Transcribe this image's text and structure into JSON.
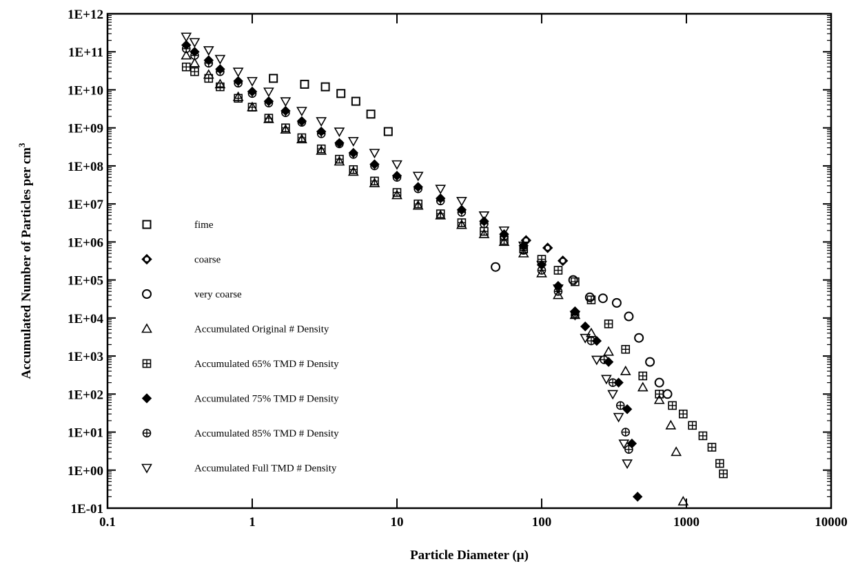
{
  "chart_data": {
    "type": "scatter",
    "title": "",
    "xlabel": "Particle Diameter (μ)",
    "ylabel": "Accumulated Number of Particles per cm",
    "ylabel_sup": "3",
    "x_scale": "log",
    "y_scale": "log",
    "xlim": [
      0.1,
      10000
    ],
    "ylim": [
      0.1,
      1000000000000
    ],
    "x_tick_labels": [
      "0.1",
      "1",
      "10",
      "100",
      "1000",
      "10000"
    ],
    "y_tick_labels": [
      "1E-01",
      "1E+00",
      "1E+01",
      "1E+02",
      "1E+03",
      "1E+04",
      "1E+05",
      "1E+06",
      "1E+07",
      "1E+08",
      "1E+09",
      "1E+10",
      "1E+11",
      "1E+12"
    ],
    "grid": false,
    "legend_position": "left",
    "series": [
      {
        "name": "fime",
        "marker": "square",
        "x": [
          1.4,
          2.3,
          3.2,
          4.1,
          5.2,
          6.6,
          8.7
        ],
        "y": [
          20000000000,
          14000000000,
          12000000000,
          8000000000,
          5000000000,
          2300000000,
          800000000
        ]
      },
      {
        "name": "coarse",
        "marker": "diamond-circle",
        "x": [
          78,
          110,
          140
        ],
        "y": [
          1100000,
          700000,
          320000
        ]
      },
      {
        "name": "very coarse",
        "marker": "circle",
        "x": [
          48,
          165,
          215,
          265,
          330,
          400,
          470,
          560,
          650,
          740
        ],
        "y": [
          220000,
          100000,
          35000,
          33000,
          25000,
          11000,
          3000,
          700,
          200,
          100
        ]
      },
      {
        "name": "Accumulated Original # Density",
        "marker": "triangle-up",
        "x": [
          0.35,
          0.4,
          0.5,
          0.6,
          0.8,
          1,
          1.3,
          1.7,
          2.2,
          3,
          4,
          5,
          7,
          10,
          14,
          20,
          28,
          40,
          55,
          75,
          100,
          130,
          170,
          220,
          290,
          380,
          500,
          650,
          780,
          850,
          950
        ],
        "y": [
          80000000000,
          50000000000,
          25000000000,
          14000000000,
          6500000000,
          3500000000,
          1700000000,
          900000000,
          500000000,
          250000000,
          130000000,
          70000000,
          35000000,
          17000000,
          9000000,
          5000000,
          2800000,
          1600000,
          1000000,
          500000,
          150000,
          40000,
          12000,
          4000,
          1300,
          400,
          150,
          70,
          15,
          3,
          0.15
        ]
      },
      {
        "name": "Accumulated 65% TMD # Density",
        "marker": "square-plus",
        "x": [
          0.35,
          0.4,
          0.5,
          0.6,
          0.8,
          1,
          1.3,
          1.7,
          2.2,
          3,
          4,
          5,
          7,
          10,
          14,
          20,
          28,
          40,
          55,
          75,
          100,
          130,
          170,
          220,
          290,
          380,
          500,
          650,
          800,
          950,
          1100,
          1300,
          1500,
          1700,
          1800
        ],
        "y": [
          40000000000,
          30000000000,
          20000000000,
          12000000000,
          6000000000,
          3500000000,
          1800000000,
          1000000000,
          550000000,
          280000000,
          150000000,
          80000000,
          40000000,
          20000000,
          10000000,
          5500000,
          3200000,
          1900000,
          1100000,
          650000,
          350000,
          180000,
          90000,
          30000,
          7000,
          1500,
          300,
          100,
          50,
          30,
          15,
          8,
          4,
          1.5,
          0.8
        ]
      },
      {
        "name": "Accumulated 75% TMD # Density",
        "marker": "diamond-filled",
        "x": [
          0.35,
          0.4,
          0.5,
          0.6,
          0.8,
          1,
          1.3,
          1.7,
          2.2,
          3,
          4,
          5,
          7,
          10,
          14,
          20,
          28,
          40,
          55,
          75,
          100,
          130,
          170,
          200,
          240,
          290,
          340,
          390,
          420,
          460
        ],
        "y": [
          150000000000,
          100000000000,
          60000000000,
          35000000000,
          17000000000,
          9000000000,
          5000000000,
          2800000000,
          1500000000,
          800000000,
          400000000,
          220000000,
          110000000,
          55000000,
          28000000,
          14000000,
          7000000,
          3500000,
          1600000,
          800000,
          250000,
          70000,
          15000,
          6000,
          2500,
          700,
          200,
          40,
          5,
          0.2
        ]
      },
      {
        "name": "Accumulated 85% TMD # Density",
        "marker": "circle-plus",
        "x": [
          0.35,
          0.4,
          0.5,
          0.6,
          0.8,
          1,
          1.3,
          1.7,
          2.2,
          3,
          4,
          5,
          7,
          10,
          14,
          20,
          28,
          40,
          55,
          75,
          100,
          130,
          170,
          220,
          270,
          310,
          350,
          380,
          400
        ],
        "y": [
          120000000000,
          80000000000,
          50000000000,
          30000000000,
          15000000000,
          8000000000,
          4500000000,
          2500000000,
          1400000000,
          700000000,
          380000000,
          200000000,
          100000000,
          50000000,
          25000000,
          12000000,
          6000000,
          3000000,
          1400000,
          600000,
          180000,
          50000,
          12000,
          2500,
          800,
          200,
          50,
          10,
          3.5
        ]
      },
      {
        "name": "Accumulated Full TMD # Density",
        "marker": "triangle-down",
        "x": [
          0.35,
          0.4,
          0.5,
          0.6,
          0.8,
          1,
          1.3,
          1.7,
          2.2,
          3,
          4,
          5,
          7,
          10,
          14,
          20,
          28,
          40,
          55,
          75,
          100,
          130,
          170,
          200,
          240,
          280,
          310,
          340,
          370,
          390
        ],
        "y": [
          250000000000,
          180000000000,
          110000000000,
          65000000000,
          30000000000,
          17000000000,
          9000000000,
          5000000000,
          2800000000,
          1500000000,
          800000000,
          450000000,
          220000000,
          110000000,
          55000000,
          25000000,
          12000000,
          5000000,
          2000000,
          800000,
          250000,
          60000,
          12000,
          3000,
          800,
          250,
          100,
          25,
          5,
          1.5
        ]
      }
    ]
  }
}
